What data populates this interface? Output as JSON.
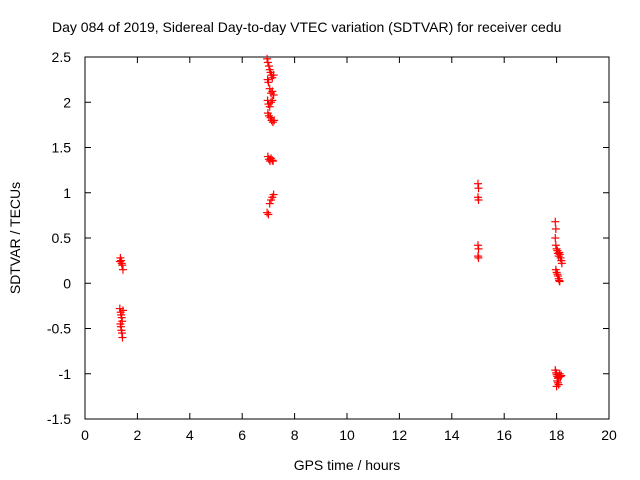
{
  "chart_data": {
    "type": "scatter",
    "title": "Day 084 of 2019, Sidereal Day-to-day VTEC variation (SDTVAR) for receiver cedu",
    "xlabel": "GPS time / hours",
    "ylabel": "SDTVAR / TECUs",
    "xlim": [
      0,
      20
    ],
    "ylim": [
      -1.5,
      2.5
    ],
    "xticks": [
      "0",
      "2",
      "4",
      "6",
      "8",
      "10",
      "12",
      "14",
      "16",
      "18",
      "20"
    ],
    "yticks": [
      "-1.5",
      "-1",
      "-0.5",
      "0",
      "0.5",
      "1",
      "1.5",
      "2",
      "2.5"
    ],
    "grid": false,
    "marker": "+",
    "marker_color": "#ff0000",
    "series": [
      {
        "name": "SDTVAR",
        "points": [
          [
            1.35,
            0.28
          ],
          [
            1.38,
            0.25
          ],
          [
            1.4,
            0.22
          ],
          [
            1.42,
            0.2
          ],
          [
            1.45,
            0.15
          ],
          [
            1.33,
            0.24
          ],
          [
            1.33,
            -0.28
          ],
          [
            1.36,
            -0.32
          ],
          [
            1.38,
            -0.35
          ],
          [
            1.4,
            -0.38
          ],
          [
            1.42,
            -0.42
          ],
          [
            1.35,
            -0.45
          ],
          [
            1.37,
            -0.48
          ],
          [
            1.39,
            -0.52
          ],
          [
            1.41,
            -0.55
          ],
          [
            1.43,
            -0.6
          ],
          [
            1.45,
            -0.3
          ],
          [
            6.95,
            2.48
          ],
          [
            6.98,
            2.44
          ],
          [
            7.02,
            2.4
          ],
          [
            7.05,
            2.36
          ],
          [
            7.08,
            2.33
          ],
          [
            7.12,
            2.3
          ],
          [
            7.15,
            2.27
          ],
          [
            7.2,
            2.3
          ],
          [
            6.97,
            2.25
          ],
          [
            7.0,
            2.22
          ],
          [
            7.05,
            2.15
          ],
          [
            7.1,
            2.1
          ],
          [
            7.15,
            2.12
          ],
          [
            7.2,
            2.08
          ],
          [
            6.97,
            2.02
          ],
          [
            7.0,
            1.98
          ],
          [
            7.05,
            1.95
          ],
          [
            7.1,
            2.0
          ],
          [
            7.15,
            2.02
          ],
          [
            6.98,
            1.88
          ],
          [
            7.02,
            1.85
          ],
          [
            7.08,
            1.83
          ],
          [
            7.12,
            1.8
          ],
          [
            7.17,
            1.78
          ],
          [
            7.22,
            1.8
          ],
          [
            6.98,
            1.4
          ],
          [
            7.02,
            1.37
          ],
          [
            7.06,
            1.35
          ],
          [
            7.1,
            1.38
          ],
          [
            7.15,
            1.36
          ],
          [
            7.18,
            1.35
          ],
          [
            6.95,
            0.78
          ],
          [
            7.0,
            0.76
          ],
          [
            7.05,
            0.88
          ],
          [
            7.1,
            0.92
          ],
          [
            7.15,
            0.95
          ],
          [
            7.2,
            0.98
          ],
          [
            15.0,
            1.1
          ],
          [
            15.02,
            1.05
          ],
          [
            15.0,
            0.95
          ],
          [
            15.02,
            0.92
          ],
          [
            15.0,
            0.42
          ],
          [
            15.02,
            0.38
          ],
          [
            15.0,
            0.3
          ],
          [
            15.02,
            0.28
          ],
          [
            17.95,
            0.68
          ],
          [
            17.97,
            0.6
          ],
          [
            17.95,
            0.5
          ],
          [
            17.97,
            0.42
          ],
          [
            18.0,
            0.38
          ],
          [
            18.03,
            0.36
          ],
          [
            18.05,
            0.33
          ],
          [
            18.08,
            0.3
          ],
          [
            18.1,
            0.34
          ],
          [
            18.12,
            0.32
          ],
          [
            18.15,
            0.28
          ],
          [
            18.18,
            0.25
          ],
          [
            18.2,
            0.22
          ],
          [
            17.97,
            0.15
          ],
          [
            18.0,
            0.12
          ],
          [
            18.03,
            0.1
          ],
          [
            18.05,
            0.08
          ],
          [
            18.08,
            0.05
          ],
          [
            18.1,
            0.03
          ],
          [
            18.12,
            0.02
          ],
          [
            17.95,
            -0.96
          ],
          [
            17.98,
            -0.99
          ],
          [
            18.0,
            -1.01
          ],
          [
            18.03,
            -1.03
          ],
          [
            18.05,
            -1.05
          ],
          [
            18.08,
            -1.04
          ],
          [
            18.1,
            -1.02
          ],
          [
            18.12,
            -1.0
          ],
          [
            18.15,
            -1.03
          ],
          [
            18.18,
            -1.02
          ],
          [
            18.02,
            -1.08
          ],
          [
            18.05,
            -1.1
          ],
          [
            18.08,
            -1.12
          ],
          [
            18.0,
            -1.14
          ]
        ]
      }
    ]
  }
}
